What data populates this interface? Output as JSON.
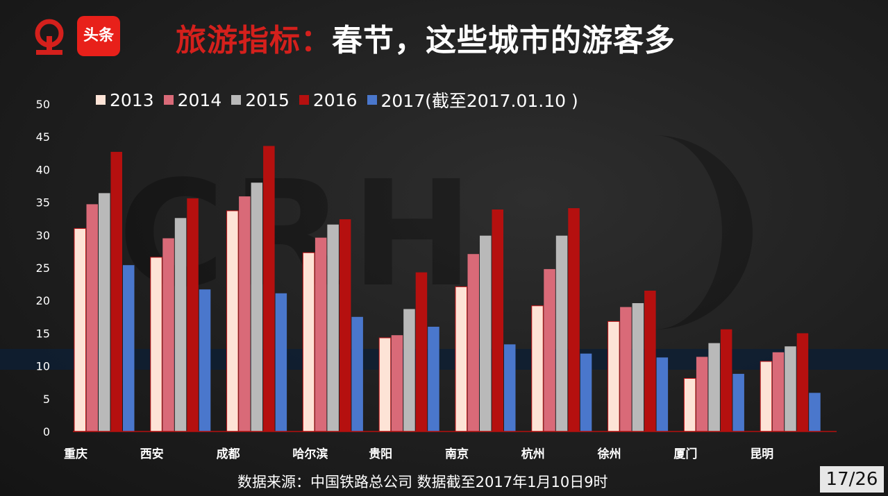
{
  "header": {
    "title_highlight": "旅游指标：",
    "title_main": "春节，这些城市的游客多",
    "badge_label": "头条"
  },
  "source_note": "数据来源：中国铁路总公司 数据截至2017年1月10日9时",
  "page_indicator": "17/26",
  "colors": {
    "title_highlight": "#d4201c",
    "series": [
      "#fde3d6",
      "#d96a78",
      "#b9b9b9",
      "#b5100f",
      "#4a77cc"
    ]
  },
  "chart_data": {
    "type": "bar",
    "categories": [
      "重庆",
      "西安",
      "成都",
      "哈尔滨",
      "贵阳",
      "南京",
      "杭州",
      "徐州",
      "厦门",
      "昆明"
    ],
    "series": [
      {
        "name": "2013",
        "values": [
          31.0,
          26.6,
          33.7,
          27.3,
          14.3,
          22.1,
          19.2,
          16.8,
          8.1,
          10.7
        ]
      },
      {
        "name": "2014",
        "values": [
          34.7,
          29.5,
          35.9,
          29.6,
          14.7,
          27.1,
          24.8,
          19.0,
          11.4,
          12.1
        ]
      },
      {
        "name": "2015",
        "values": [
          36.4,
          32.6,
          38.0,
          31.6,
          18.7,
          29.9,
          29.9,
          19.6,
          13.5,
          13.0
        ]
      },
      {
        "name": "2016",
        "values": [
          42.7,
          35.6,
          43.6,
          32.4,
          24.3,
          33.9,
          34.1,
          21.5,
          15.6,
          15.0
        ]
      },
      {
        "name": "2017(截至2017.01.10 )",
        "values": [
          25.4,
          21.7,
          21.1,
          17.5,
          16.0,
          13.3,
          11.9,
          11.3,
          8.8,
          5.9
        ]
      }
    ],
    "ylim": [
      0,
      50
    ],
    "yticks": [
      0,
      5,
      10,
      15,
      20,
      25,
      30,
      35,
      40,
      45,
      50
    ],
    "title": "",
    "xlabel": "",
    "ylabel": "",
    "grid": false,
    "legend_position": "top"
  }
}
